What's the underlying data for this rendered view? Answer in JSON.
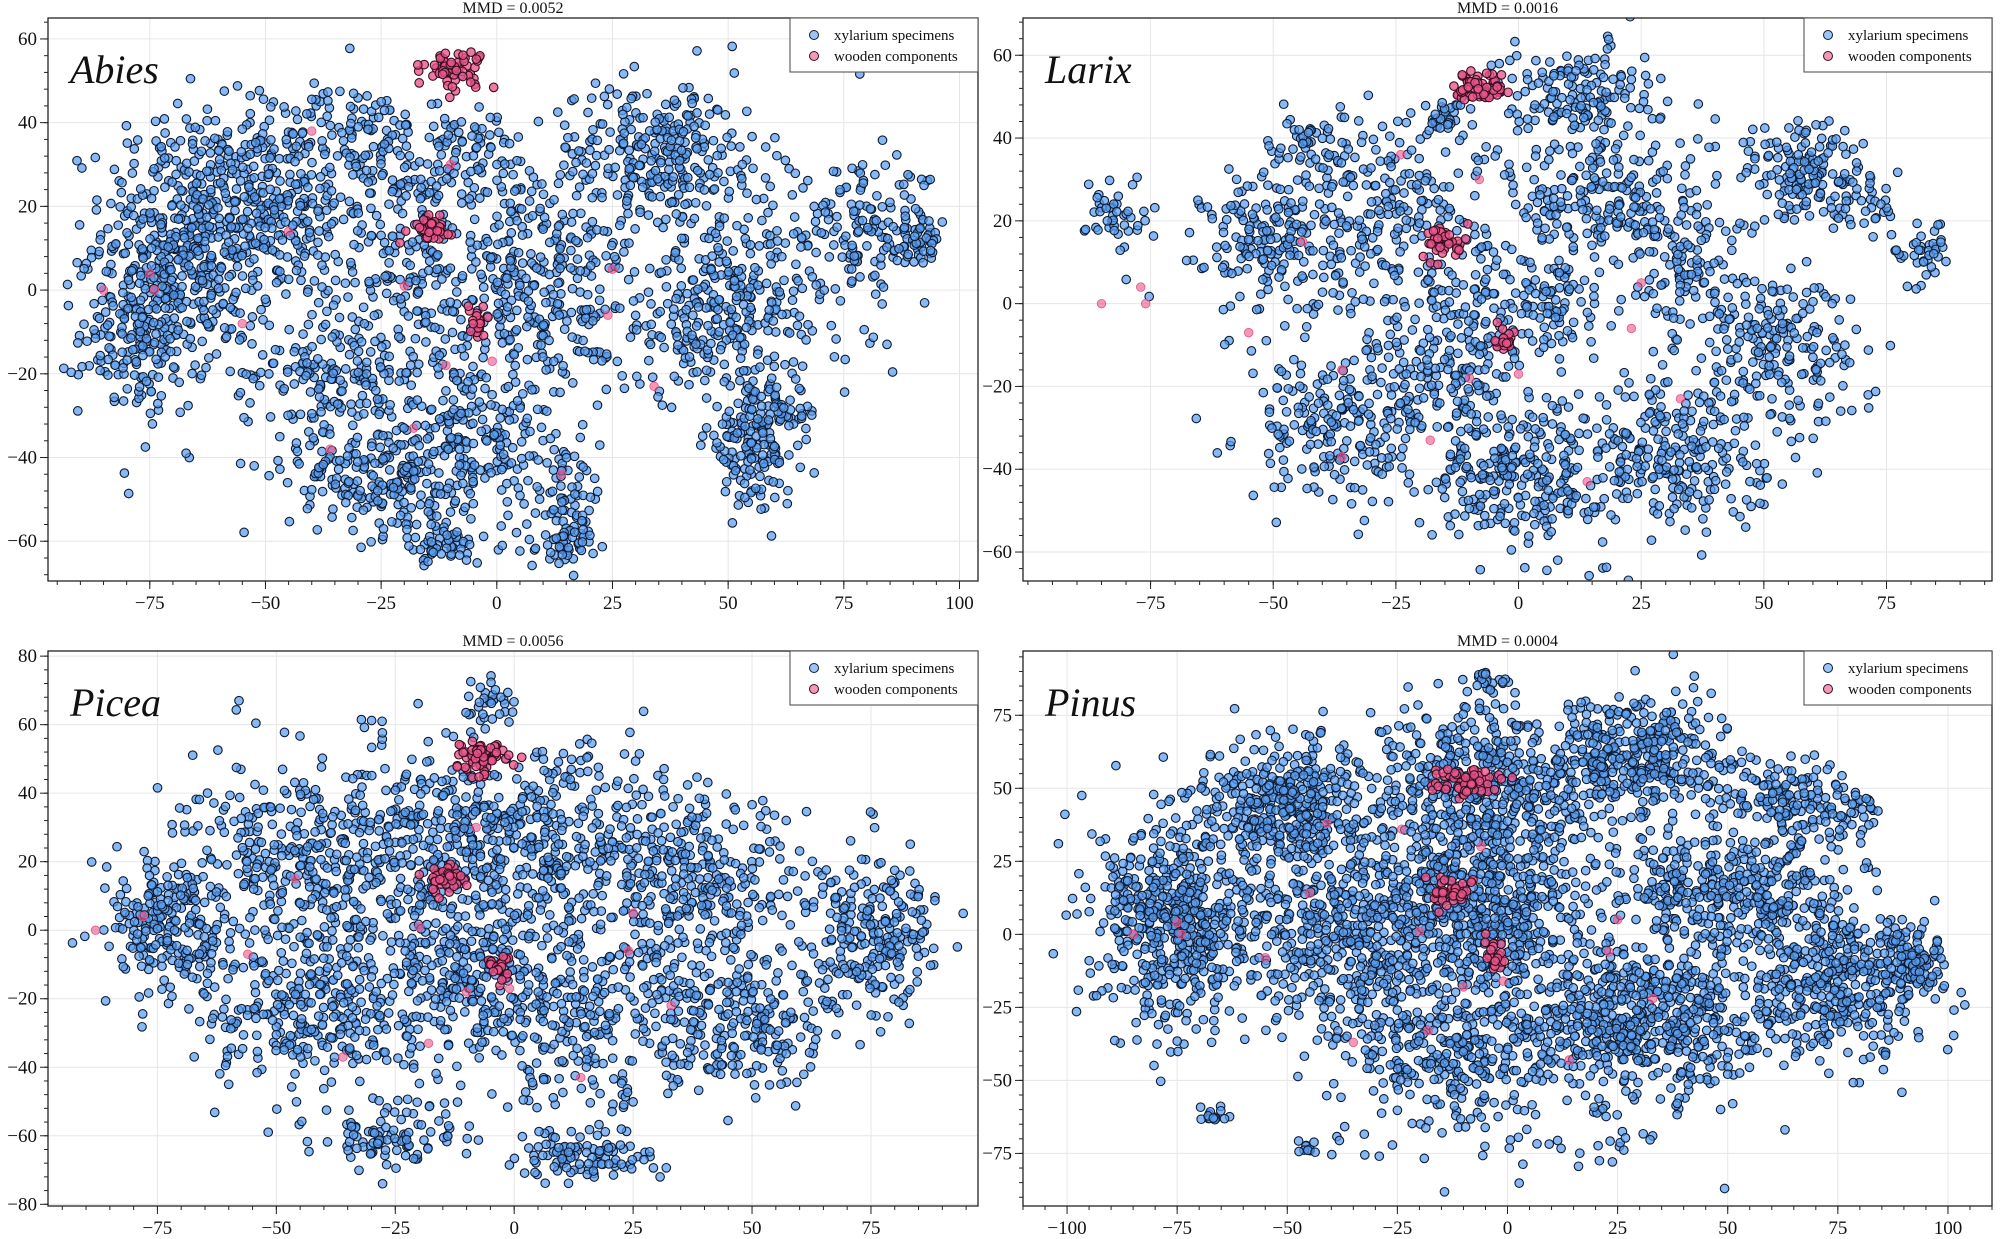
{
  "chart_data": {
    "type": "scatter",
    "legend_placement": "top-right",
    "grid": true,
    "series_names": [
      "xylarium specimens",
      "wooden components"
    ],
    "colors": {
      "xylarium specimens": "#5a9ef0",
      "wooden components": "#e8558a",
      "edge": "#0d1b33"
    },
    "panels": [
      {
        "species": "Abies",
        "title": "MMD = 0.0052",
        "xlim": [
          -97,
          104
        ],
        "ylim": [
          -69.5,
          65
        ],
        "xticks": [
          -75,
          -50,
          -25,
          0,
          25,
          50,
          75,
          100
        ],
        "yticks": [
          -60,
          -40,
          -20,
          0,
          20,
          40,
          60
        ],
        "xylarium_clusters": [
          [
            -65,
            15,
            10,
            14,
            480
          ],
          [
            -76,
            -10,
            7,
            10,
            230
          ],
          [
            -45,
            20,
            8,
            11,
            200
          ],
          [
            -30,
            37,
            8,
            6,
            110
          ],
          [
            -20,
            10,
            7,
            12,
            140
          ],
          [
            -35,
            -20,
            10,
            9,
            200
          ],
          [
            -25,
            -45,
            10,
            7,
            200
          ],
          [
            -5,
            -35,
            9,
            11,
            200
          ],
          [
            8,
            0,
            11,
            14,
            330
          ],
          [
            35,
            32,
            12,
            9,
            300
          ],
          [
            50,
            -5,
            14,
            11,
            330
          ],
          [
            55,
            -37,
            5,
            7,
            150
          ],
          [
            62,
            -30,
            4,
            4,
            40
          ],
          [
            80,
            15,
            9,
            7,
            150
          ],
          [
            92,
            10,
            3,
            2,
            30
          ],
          [
            15,
            -50,
            4,
            7,
            70
          ],
          [
            -12,
            -61,
            4,
            2.5,
            50
          ],
          [
            15,
            -60,
            3,
            2.5,
            40
          ],
          [
            -6,
            30,
            6,
            8,
            100
          ]
        ],
        "wooden_clusters": [
          [
            -9,
            53,
            3.2,
            2.2,
            60
          ],
          [
            -15,
            15,
            2.5,
            1.5,
            35
          ],
          [
            -4,
            -8,
            1.2,
            2.5,
            18
          ]
        ],
        "wooden_singles": [
          [
            -85,
            0
          ],
          [
            -75,
            4
          ],
          [
            -74,
            0
          ],
          [
            -55,
            -8
          ],
          [
            -45,
            14
          ],
          [
            -40,
            38
          ],
          [
            -36,
            -38
          ],
          [
            -20,
            1
          ],
          [
            -18,
            -33
          ],
          [
            -11,
            -18
          ],
          [
            -10,
            30
          ],
          [
            -1,
            -17
          ],
          [
            14,
            -44
          ],
          [
            24,
            -6
          ],
          [
            25,
            5
          ],
          [
            34,
            -23
          ]
        ]
      },
      {
        "species": "Larix",
        "title": "MMD = 0.0016",
        "xlim": [
          -101,
          96.5
        ],
        "ylim": [
          -67,
          69
        ],
        "xticks": [
          -75,
          -50,
          -25,
          0,
          25,
          50,
          75
        ],
        "yticks": [
          -60,
          -40,
          -20,
          0,
          20,
          40,
          60
        ],
        "xylarium_clusters": [
          [
            -82,
            22,
            3,
            5,
            45
          ],
          [
            -50,
            15,
            7,
            9,
            190
          ],
          [
            -25,
            20,
            9,
            11,
            200
          ],
          [
            -38,
            -30,
            9,
            9,
            190
          ],
          [
            -15,
            -15,
            9,
            11,
            230
          ],
          [
            0,
            -42,
            9,
            8,
            230
          ],
          [
            12,
            50,
            8,
            7,
            160
          ],
          [
            18,
            25,
            11,
            9,
            230
          ],
          [
            5,
            0,
            7,
            7,
            110
          ],
          [
            30,
            -35,
            11,
            9,
            280
          ],
          [
            52,
            -10,
            9,
            9,
            190
          ],
          [
            35,
            8,
            7,
            7,
            100
          ],
          [
            -15,
            45,
            2.5,
            2.5,
            30
          ],
          [
            58,
            32,
            6,
            6,
            140
          ],
          [
            82,
            12,
            3,
            4,
            40
          ],
          [
            -42,
            38,
            4,
            4,
            55
          ],
          [
            70,
            25,
            4,
            4,
            40
          ]
        ],
        "wooden_clusters": [
          [
            -7,
            52,
            3,
            2.2,
            60
          ],
          [
            -15,
            15,
            2,
            2,
            40
          ],
          [
            -3,
            -8,
            1.3,
            2,
            20
          ]
        ],
        "wooden_singles": [
          [
            -85,
            0
          ],
          [
            -77,
            4
          ],
          [
            -76,
            0
          ],
          [
            -55,
            -7
          ],
          [
            -44,
            15
          ],
          [
            -36,
            -16
          ],
          [
            -24,
            36
          ],
          [
            -18,
            -33
          ],
          [
            -10,
            -18
          ],
          [
            -8,
            30
          ],
          [
            0,
            -17
          ],
          [
            14,
            -43
          ],
          [
            23,
            -6
          ],
          [
            25,
            5
          ],
          [
            33,
            -23
          ],
          [
            -36,
            -37
          ]
        ]
      },
      {
        "species": "Picea",
        "title": "MMD = 0.0056",
        "xlim": [
          -98,
          97.5
        ],
        "ylim": [
          -80.5,
          81.5
        ],
        "xticks": [
          -75,
          -50,
          -25,
          0,
          25,
          50,
          75
        ],
        "yticks": [
          -80,
          -60,
          -40,
          -20,
          0,
          20,
          40,
          60,
          80
        ],
        "xylarium_clusters": [
          [
            -72,
            0,
            7,
            11,
            240
          ],
          [
            -45,
            20,
            11,
            14,
            330
          ],
          [
            -42,
            -25,
            11,
            11,
            280
          ],
          [
            -15,
            30,
            11,
            14,
            290
          ],
          [
            -10,
            -10,
            11,
            14,
            290
          ],
          [
            12,
            25,
            14,
            14,
            330
          ],
          [
            15,
            -25,
            14,
            14,
            290
          ],
          [
            40,
            10,
            11,
            14,
            290
          ],
          [
            50,
            -30,
            9,
            9,
            190
          ],
          [
            75,
            0,
            7,
            11,
            240
          ],
          [
            15,
            -66,
            7,
            4,
            100
          ],
          [
            -25,
            -60,
            9,
            5,
            100
          ],
          [
            -5,
            66,
            2.5,
            4,
            30
          ]
        ],
        "wooden_clusters": [
          [
            -7,
            50,
            3,
            2.2,
            60
          ],
          [
            -15,
            15,
            2,
            2,
            40
          ],
          [
            -3,
            -10,
            1.3,
            2,
            20
          ]
        ],
        "wooden_singles": [
          [
            -88,
            0
          ],
          [
            -78,
            4
          ],
          [
            -56,
            -7
          ],
          [
            -46,
            15
          ],
          [
            -36,
            -37
          ],
          [
            -20,
            1
          ],
          [
            -18,
            -33
          ],
          [
            -10,
            -18
          ],
          [
            -8,
            30
          ],
          [
            -1,
            -17
          ],
          [
            14,
            -43
          ],
          [
            24,
            -6
          ],
          [
            25,
            5
          ],
          [
            33,
            -22
          ]
        ]
      },
      {
        "species": "Pinus",
        "title": "MMD = 0.0004",
        "xlim": [
          -110,
          110
        ],
        "ylim": [
          -93,
          97
        ],
        "xticks": [
          -100,
          -75,
          -50,
          -25,
          0,
          25,
          50,
          75,
          100
        ],
        "yticks": [
          -75,
          -50,
          -25,
          0,
          25,
          50,
          75
        ],
        "xylarium_clusters": [
          [
            -75,
            5,
            9,
            18,
            560
          ],
          [
            -50,
            45,
            9,
            11,
            380
          ],
          [
            -35,
            0,
            14,
            18,
            560
          ],
          [
            -5,
            50,
            14,
            13,
            480
          ],
          [
            -5,
            10,
            11,
            14,
            480
          ],
          [
            30,
            60,
            11,
            11,
            380
          ],
          [
            30,
            -30,
            16,
            14,
            640
          ],
          [
            50,
            15,
            14,
            11,
            380
          ],
          [
            75,
            -15,
            11,
            13,
            380
          ],
          [
            65,
            45,
            7,
            7,
            140
          ],
          [
            92,
            -10,
            4,
            7,
            100
          ],
          [
            -10,
            -40,
            14,
            10,
            280
          ],
          [
            0,
            -68,
            20,
            7,
            55
          ],
          [
            -5,
            87,
            2.5,
            1.5,
            20
          ],
          [
            -67,
            -62,
            1.5,
            1.5,
            15
          ],
          [
            -45,
            -73,
            1.2,
            1.2,
            10
          ],
          [
            78,
            42,
            3.5,
            3,
            30
          ]
        ],
        "wooden_clusters": [
          [
            -10,
            52,
            4,
            2.5,
            60
          ],
          [
            -13,
            15,
            3,
            2.5,
            40
          ],
          [
            -3,
            -8,
            1.5,
            2.5,
            20
          ]
        ],
        "wooden_singles": [
          [
            -85,
            0
          ],
          [
            -75,
            4
          ],
          [
            -74,
            0
          ],
          [
            -55,
            -8
          ],
          [
            -45,
            14
          ],
          [
            -41,
            38
          ],
          [
            -35,
            -37
          ],
          [
            -24,
            36
          ],
          [
            -20,
            1
          ],
          [
            -18,
            -33
          ],
          [
            -10,
            -18
          ],
          [
            -6,
            30
          ],
          [
            -1,
            -16
          ],
          [
            14,
            -43
          ],
          [
            23,
            -6
          ],
          [
            25,
            5
          ],
          [
            33,
            -22
          ]
        ]
      }
    ]
  }
}
